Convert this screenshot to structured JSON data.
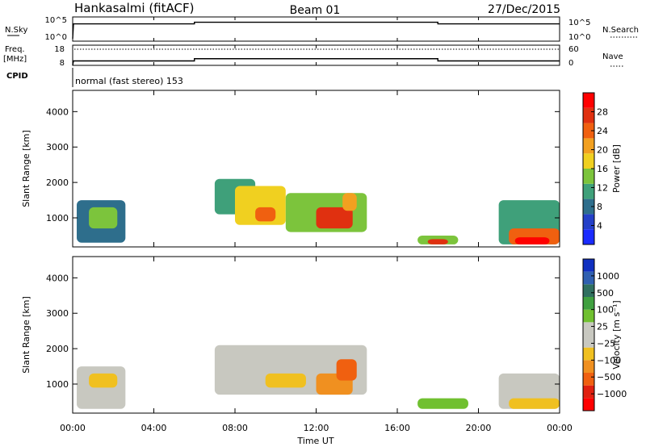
{
  "header": {
    "station": "Hankasalmi (fitACF)",
    "beam": "Beam 01",
    "date": "27/Dec/2015"
  },
  "summary": {
    "nsky_label": "N.Sky",
    "nsky_ticks": [
      "10^5",
      "10^0"
    ],
    "nsearch_label": "N.Search",
    "nsearch_ticks": [
      "10^5",
      "10^0"
    ],
    "freq_label_1": "Freq.",
    "freq_label_2": "[MHz]",
    "freq_ticks": [
      "18",
      "8"
    ],
    "nave_label": "Nave",
    "nave_ticks": [
      "60",
      "0"
    ],
    "cpid_label": "CPID",
    "cpid_text": "normal (fast stereo) 153",
    "nsky_level": 0.78,
    "freq_step_hours": [
      6,
      18
    ],
    "freq_levels_mhz": [
      10.2,
      11.3,
      10.2
    ],
    "nave_level": 48
  },
  "chart_data": [
    {
      "type": "heatmap",
      "name": "power",
      "ylabel": "Slant Range [km]",
      "xlabel": "Time UT",
      "xlim": [
        0,
        24
      ],
      "ylim": [
        180,
        4600
      ],
      "yticks": [
        1000,
        2000,
        3000,
        4000
      ],
      "xtick_labels": [
        "00:00",
        "04:00",
        "08:00",
        "12:00",
        "16:00",
        "20:00",
        "00:00"
      ],
      "colorbar": {
        "label": "Power [dB]",
        "ticks": [
          "4",
          "8",
          "12",
          "16",
          "20",
          "24",
          "28"
        ],
        "colors": [
          "#1a2bff",
          "#2440c8",
          "#2e6e8c",
          "#3fa07a",
          "#7cc43c",
          "#f0d020",
          "#f2a020",
          "#f06010",
          "#e03010",
          "#ff0000"
        ]
      },
      "regions": [
        {
          "t": [
            0.2,
            2.6
          ],
          "r": [
            300,
            1500
          ],
          "level": 2
        },
        {
          "t": [
            0.8,
            2.2
          ],
          "r": [
            700,
            1300
          ],
          "level": 4
        },
        {
          "t": [
            7.0,
            9.0
          ],
          "r": [
            1100,
            2100
          ],
          "level": 3
        },
        {
          "t": [
            8.0,
            10.5
          ],
          "r": [
            800,
            1900
          ],
          "level": 5
        },
        {
          "t": [
            9.0,
            10.0
          ],
          "r": [
            900,
            1300
          ],
          "level": 7
        },
        {
          "t": [
            10.5,
            14.5
          ],
          "r": [
            600,
            1700
          ],
          "level": 4
        },
        {
          "t": [
            12.0,
            13.8
          ],
          "r": [
            700,
            1300
          ],
          "level": 8
        },
        {
          "t": [
            13.3,
            14.0
          ],
          "r": [
            1200,
            1700
          ],
          "level": 6
        },
        {
          "t": [
            17.0,
            19.0
          ],
          "r": [
            250,
            500
          ],
          "level": 4
        },
        {
          "t": [
            17.5,
            18.5
          ],
          "r": [
            250,
            400
          ],
          "level": 8
        },
        {
          "t": [
            21.0,
            24.0
          ],
          "r": [
            250,
            1500
          ],
          "level": 3
        },
        {
          "t": [
            21.5,
            24.0
          ],
          "r": [
            250,
            700
          ],
          "level": 7
        },
        {
          "t": [
            21.8,
            23.5
          ],
          "r": [
            250,
            450
          ],
          "level": 9
        }
      ]
    },
    {
      "type": "heatmap",
      "name": "velocity",
      "ylabel": "Slant Range [km]",
      "xlabel": "Time UT",
      "xlim": [
        0,
        24
      ],
      "ylim": [
        180,
        4600
      ],
      "yticks": [
        1000,
        2000,
        3000,
        4000
      ],
      "xtick_labels": [
        "00:00",
        "04:00",
        "08:00",
        "12:00",
        "16:00",
        "20:00",
        "00:00"
      ],
      "colorbar": {
        "label": "Velocity [m s⁻¹]",
        "ticks": [
          "1000",
          "500",
          "100",
          "25",
          "−25",
          "−100",
          "−500",
          "−1000"
        ],
        "colors": [
          "#1030c0",
          "#3060b0",
          "#307060",
          "#40a040",
          "#70c030",
          "#c8c8c0",
          "#c8c8c0",
          "#f0c020",
          "#f09020",
          "#f06010",
          "#e02010",
          "#ff0000"
        ]
      },
      "regions": [
        {
          "t": [
            0.2,
            2.6
          ],
          "r": [
            300,
            1500
          ],
          "level": 5
        },
        {
          "t": [
            0.8,
            2.2
          ],
          "r": [
            900,
            1300
          ],
          "level": 7
        },
        {
          "t": [
            7.0,
            14.5
          ],
          "r": [
            700,
            2100
          ],
          "level": 5
        },
        {
          "t": [
            9.5,
            11.5
          ],
          "r": [
            900,
            1300
          ],
          "level": 7
        },
        {
          "t": [
            12.0,
            13.8
          ],
          "r": [
            700,
            1300
          ],
          "level": 8
        },
        {
          "t": [
            13.0,
            14.0
          ],
          "r": [
            1100,
            1700
          ],
          "level": 9
        },
        {
          "t": [
            17.0,
            19.5
          ],
          "r": [
            300,
            600
          ],
          "level": 4
        },
        {
          "t": [
            21.0,
            24.0
          ],
          "r": [
            300,
            1300
          ],
          "level": 5
        },
        {
          "t": [
            21.5,
            24.0
          ],
          "r": [
            300,
            600
          ],
          "level": 7
        }
      ]
    }
  ]
}
